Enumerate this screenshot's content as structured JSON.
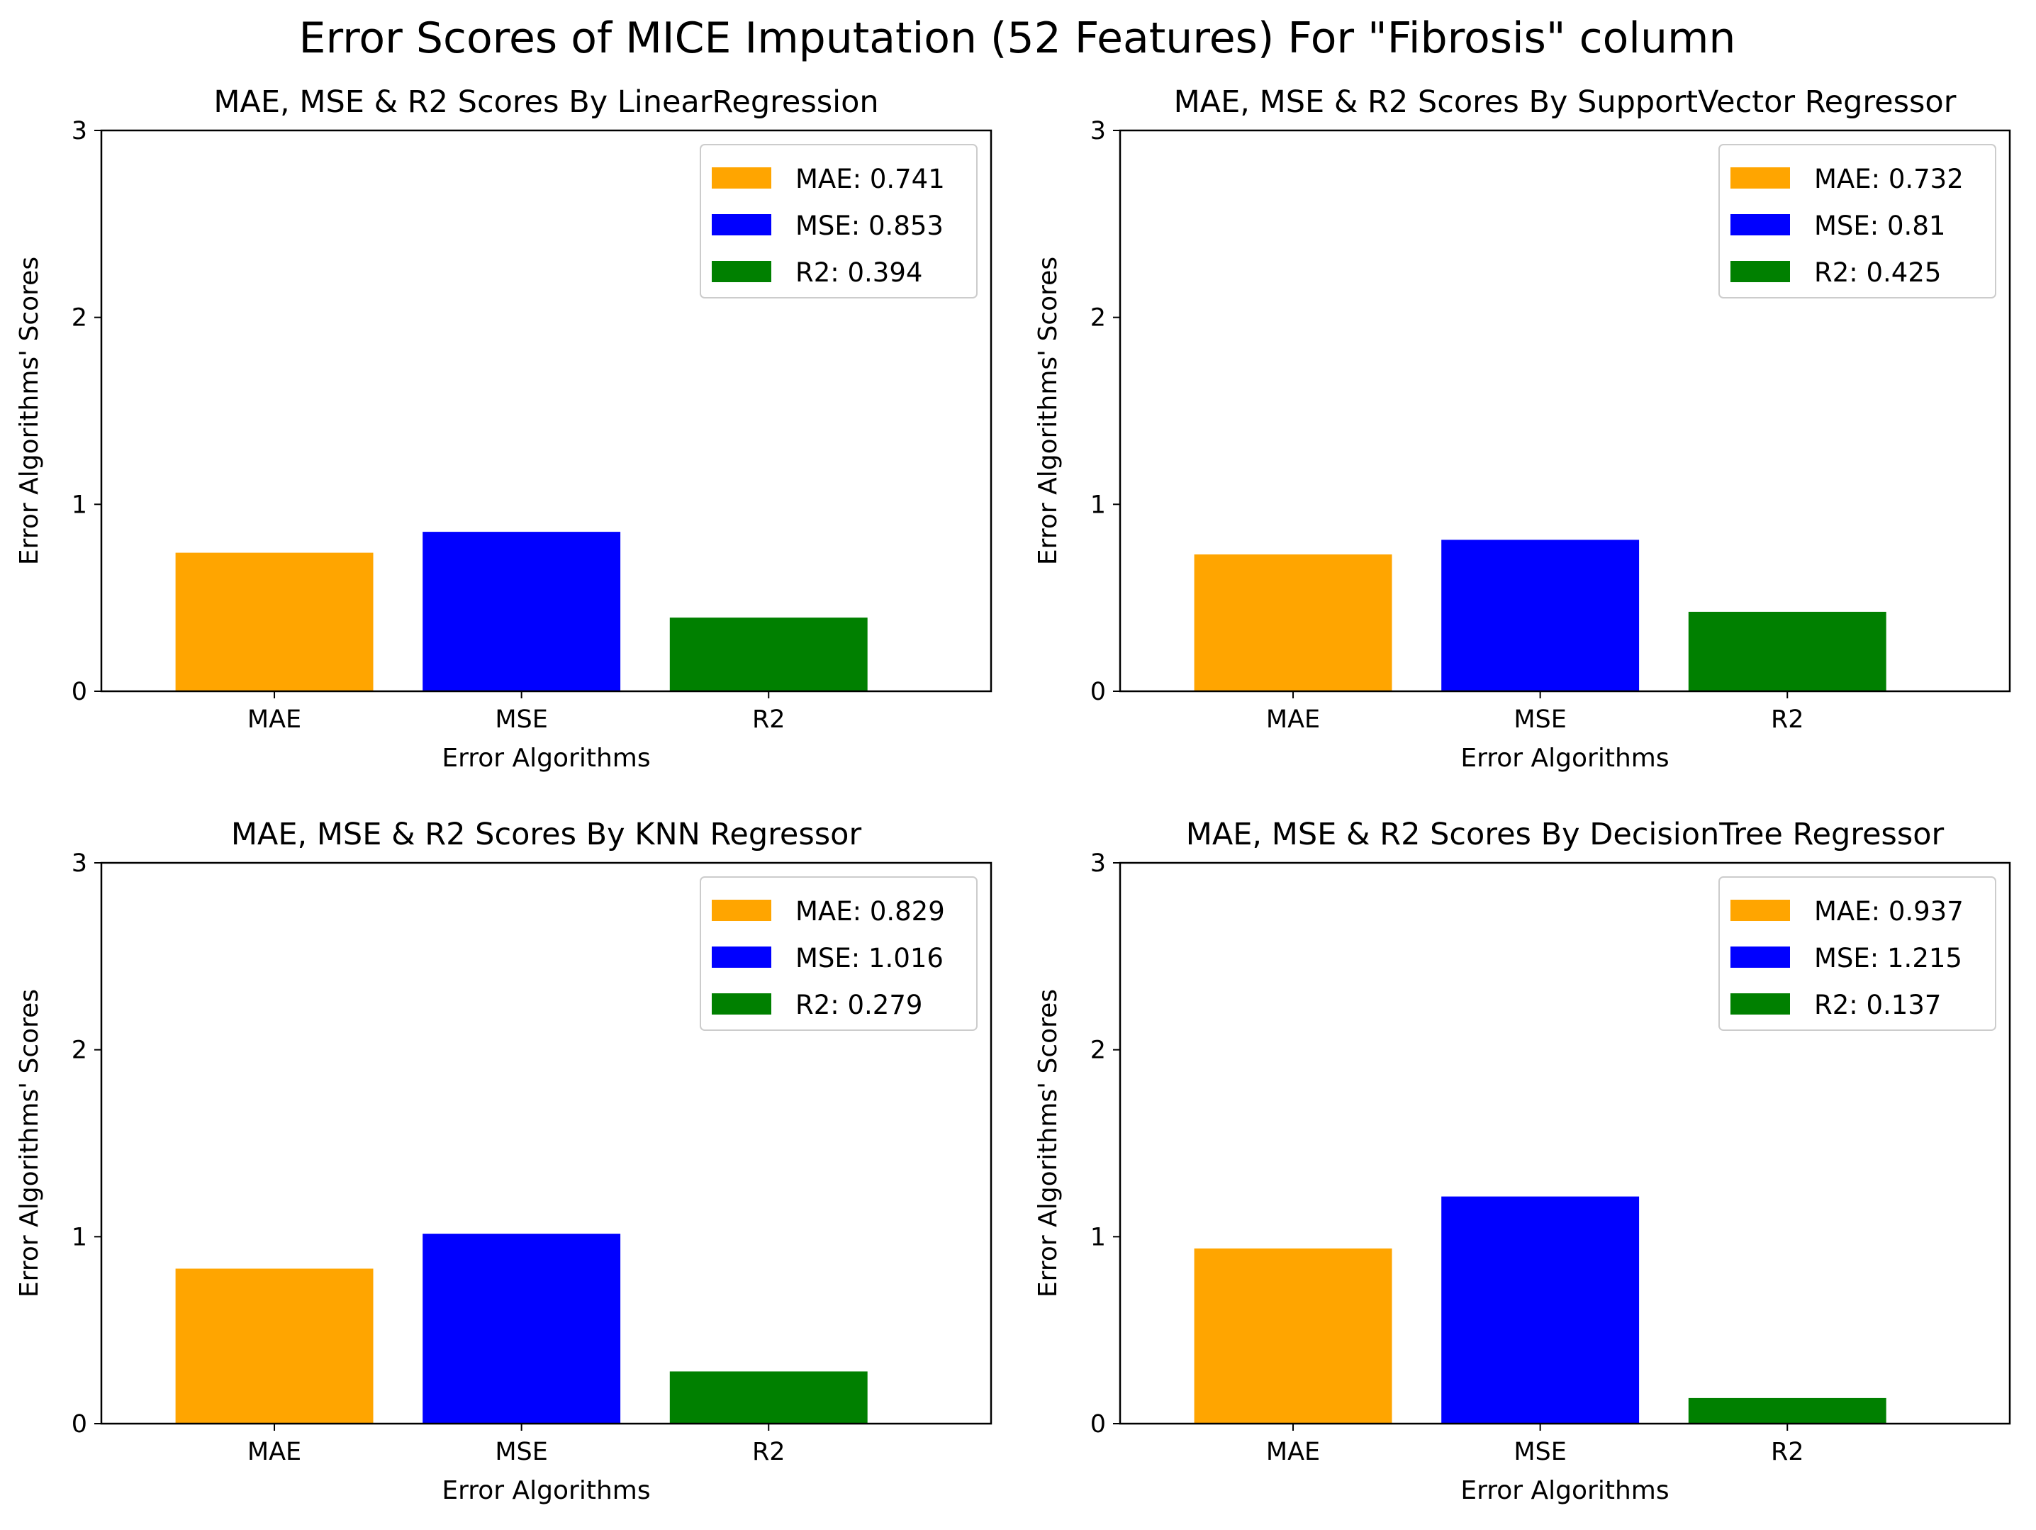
{
  "figure": {
    "title": "Error Scores of MICE Imputation (52 Features) For \"Fibrosis\" column"
  },
  "chart_data": [
    {
      "type": "bar",
      "title": "MAE, MSE & R2 Scores By LinearRegression",
      "xlabel": "Error Algorithms",
      "ylabel": "Error Algorithms' Scores",
      "categories": [
        "MAE",
        "MSE",
        "R2"
      ],
      "values": [
        0.741,
        0.853,
        0.394
      ],
      "colors": [
        "#ffa500",
        "#0000ff",
        "#008000"
      ],
      "legend": [
        "MAE: 0.741",
        "MSE: 0.853",
        "R2: 0.394"
      ],
      "legend_position": "top-right",
      "ylim": [
        0,
        3
      ],
      "yticks": [
        "0",
        "1",
        "2",
        "3"
      ],
      "grid": false
    },
    {
      "type": "bar",
      "title": "MAE, MSE & R2 Scores By SupportVector Regressor",
      "xlabel": "Error Algorithms",
      "ylabel": "Error Algorithms' Scores",
      "categories": [
        "MAE",
        "MSE",
        "R2"
      ],
      "values": [
        0.732,
        0.81,
        0.425
      ],
      "colors": [
        "#ffa500",
        "#0000ff",
        "#008000"
      ],
      "legend": [
        "MAE: 0.732",
        "MSE: 0.81",
        "R2: 0.425"
      ],
      "legend_position": "top-right",
      "ylim": [
        0,
        3
      ],
      "yticks": [
        "0",
        "1",
        "2",
        "3"
      ],
      "grid": false
    },
    {
      "type": "bar",
      "title": "MAE, MSE & R2 Scores By KNN Regressor",
      "xlabel": "Error Algorithms",
      "ylabel": "Error Algorithms' Scores",
      "categories": [
        "MAE",
        "MSE",
        "R2"
      ],
      "values": [
        0.829,
        1.016,
        0.279
      ],
      "colors": [
        "#ffa500",
        "#0000ff",
        "#008000"
      ],
      "legend": [
        "MAE: 0.829",
        "MSE: 1.016",
        "R2: 0.279"
      ],
      "legend_position": "top-right",
      "ylim": [
        0,
        3
      ],
      "yticks": [
        "0",
        "1",
        "2",
        "3"
      ],
      "grid": false
    },
    {
      "type": "bar",
      "title": "MAE, MSE & R2 Scores By DecisionTree Regressor",
      "xlabel": "Error Algorithms",
      "ylabel": "Error Algorithms' Scores",
      "categories": [
        "MAE",
        "MSE",
        "R2"
      ],
      "values": [
        0.937,
        1.215,
        0.137
      ],
      "colors": [
        "#ffa500",
        "#0000ff",
        "#008000"
      ],
      "legend": [
        "MAE: 0.937",
        "MSE: 1.215",
        "R2: 0.137"
      ],
      "legend_position": "top-right",
      "ylim": [
        0,
        3
      ],
      "yticks": [
        "0",
        "1",
        "2",
        "3"
      ],
      "grid": false
    }
  ]
}
